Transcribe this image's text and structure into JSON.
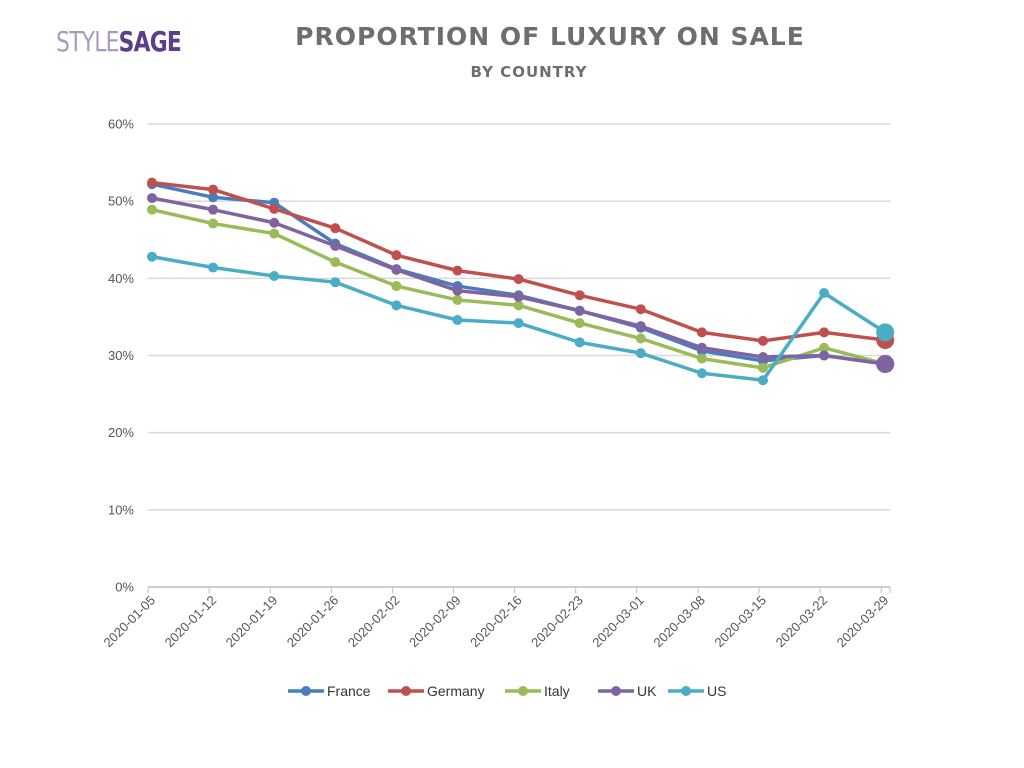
{
  "logo": {
    "part1": "STYLE",
    "part2": "SAGE"
  },
  "chart_data": {
    "type": "line",
    "title": "PROPORTION OF LUXURY ON SALE",
    "subtitle": "BY COUNTRY",
    "xlabel": "",
    "ylabel": "",
    "categories": [
      "2020-01-05",
      "2020-01-12",
      "2020-01-19",
      "2020-01-26",
      "2020-02-02",
      "2020-02-09",
      "2020-02-16",
      "2020-02-23",
      "2020-03-01",
      "2020-03-08",
      "2020-03-15",
      "2020-03-22",
      "2020-03-29"
    ],
    "ylim": [
      0,
      60
    ],
    "yticks": [
      0,
      10,
      20,
      30,
      40,
      50,
      60
    ],
    "ytick_labels": [
      "0%",
      "10%",
      "20%",
      "30%",
      "40%",
      "50%",
      "60%"
    ],
    "grid": true,
    "legend_position": "bottom",
    "series": [
      {
        "name": "France",
        "color": "#4a7ebb",
        "values": [
          52.2,
          50.5,
          49.8,
          44.5,
          41.2,
          39.0,
          37.8,
          35.8,
          33.6,
          30.6,
          29.3,
          30.0,
          28.9
        ]
      },
      {
        "name": "Germany",
        "color": "#c0504d",
        "values": [
          52.4,
          51.5,
          49.0,
          46.5,
          43.0,
          41.0,
          39.9,
          37.8,
          36.0,
          33.0,
          31.9,
          33.0,
          32.0
        ]
      },
      {
        "name": "Italy",
        "color": "#9bbb59",
        "values": [
          48.9,
          47.1,
          45.8,
          42.1,
          39.0,
          37.2,
          36.5,
          34.2,
          32.2,
          29.6,
          28.4,
          31.0,
          28.9
        ]
      },
      {
        "name": "UK",
        "color": "#8064a2",
        "values": [
          50.4,
          48.9,
          47.2,
          44.2,
          41.1,
          38.4,
          37.6,
          35.8,
          33.8,
          31.0,
          29.8,
          30.0,
          28.9
        ]
      },
      {
        "name": "US",
        "color": "#4bacc6",
        "values": [
          42.8,
          41.4,
          40.3,
          39.5,
          36.5,
          34.6,
          34.2,
          31.7,
          30.3,
          27.7,
          26.8,
          38.1,
          33.0
        ]
      }
    ]
  }
}
